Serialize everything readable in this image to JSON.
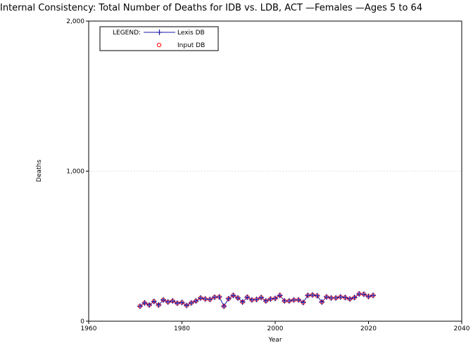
{
  "chart_data": {
    "type": "line",
    "title": "Internal Consistency: Total Number of Deaths for IDB vs. LDB, ACT —Females —Ages 5 to 64",
    "xlabel": "Year",
    "ylabel": "Deaths",
    "xlim": [
      1960,
      2040
    ],
    "ylim": [
      0,
      2000
    ],
    "x_ticks": [
      "1960",
      "1980",
      "2000",
      "2020",
      "2040"
    ],
    "y_ticks": [
      "0",
      "1,000",
      "2,000"
    ],
    "grid": true,
    "legend": {
      "position": "top-left",
      "label": "LEGEND:",
      "entries": [
        "Lexis DB",
        "Input DB"
      ]
    },
    "series": [
      {
        "name": "Lexis DB",
        "color": "#1a1aa6",
        "marker": "plus",
        "x": [
          1971,
          1972,
          1973,
          1974,
          1975,
          1976,
          1977,
          1978,
          1979,
          1980,
          1981,
          1982,
          1983,
          1984,
          1985,
          1986,
          1987,
          1988,
          1989,
          1990,
          1991,
          1992,
          1993,
          1994,
          1995,
          1996,
          1997,
          1998,
          1999,
          2000,
          2001,
          2002,
          2003,
          2004,
          2005,
          2006,
          2007,
          2008,
          2009,
          2010,
          2011,
          2012,
          2013,
          2014,
          2015,
          2016,
          2017,
          2018,
          2019,
          2020,
          2021
        ],
        "values": [
          100,
          122,
          108,
          132,
          108,
          142,
          128,
          135,
          120,
          125,
          105,
          122,
          135,
          155,
          148,
          145,
          160,
          162,
          100,
          150,
          172,
          155,
          128,
          160,
          142,
          145,
          158,
          135,
          148,
          152,
          172,
          135,
          135,
          142,
          142,
          125,
          172,
          175,
          170,
          128,
          162,
          155,
          155,
          162,
          158,
          148,
          158,
          182,
          180,
          165,
          172
        ]
      },
      {
        "name": "Input DB",
        "color": "#ff0000",
        "marker": "circle",
        "x": [
          1971,
          1972,
          1973,
          1974,
          1975,
          1976,
          1977,
          1978,
          1979,
          1980,
          1981,
          1982,
          1983,
          1984,
          1985,
          1986,
          1987,
          1988,
          1989,
          1990,
          1991,
          1992,
          1993,
          1994,
          1995,
          1996,
          1997,
          1998,
          1999,
          2000,
          2001,
          2002,
          2003,
          2004,
          2005,
          2006,
          2007,
          2008,
          2009,
          2010,
          2011,
          2012,
          2013,
          2014,
          2015,
          2016,
          2017,
          2018,
          2019,
          2020,
          2021
        ],
        "values": [
          100,
          122,
          108,
          132,
          108,
          142,
          128,
          135,
          120,
          125,
          105,
          122,
          135,
          155,
          148,
          145,
          160,
          162,
          100,
          150,
          172,
          155,
          128,
          160,
          142,
          145,
          158,
          135,
          148,
          152,
          172,
          135,
          135,
          142,
          142,
          125,
          172,
          175,
          170,
          128,
          162,
          155,
          155,
          162,
          158,
          148,
          158,
          182,
          180,
          165,
          172
        ]
      }
    ]
  }
}
